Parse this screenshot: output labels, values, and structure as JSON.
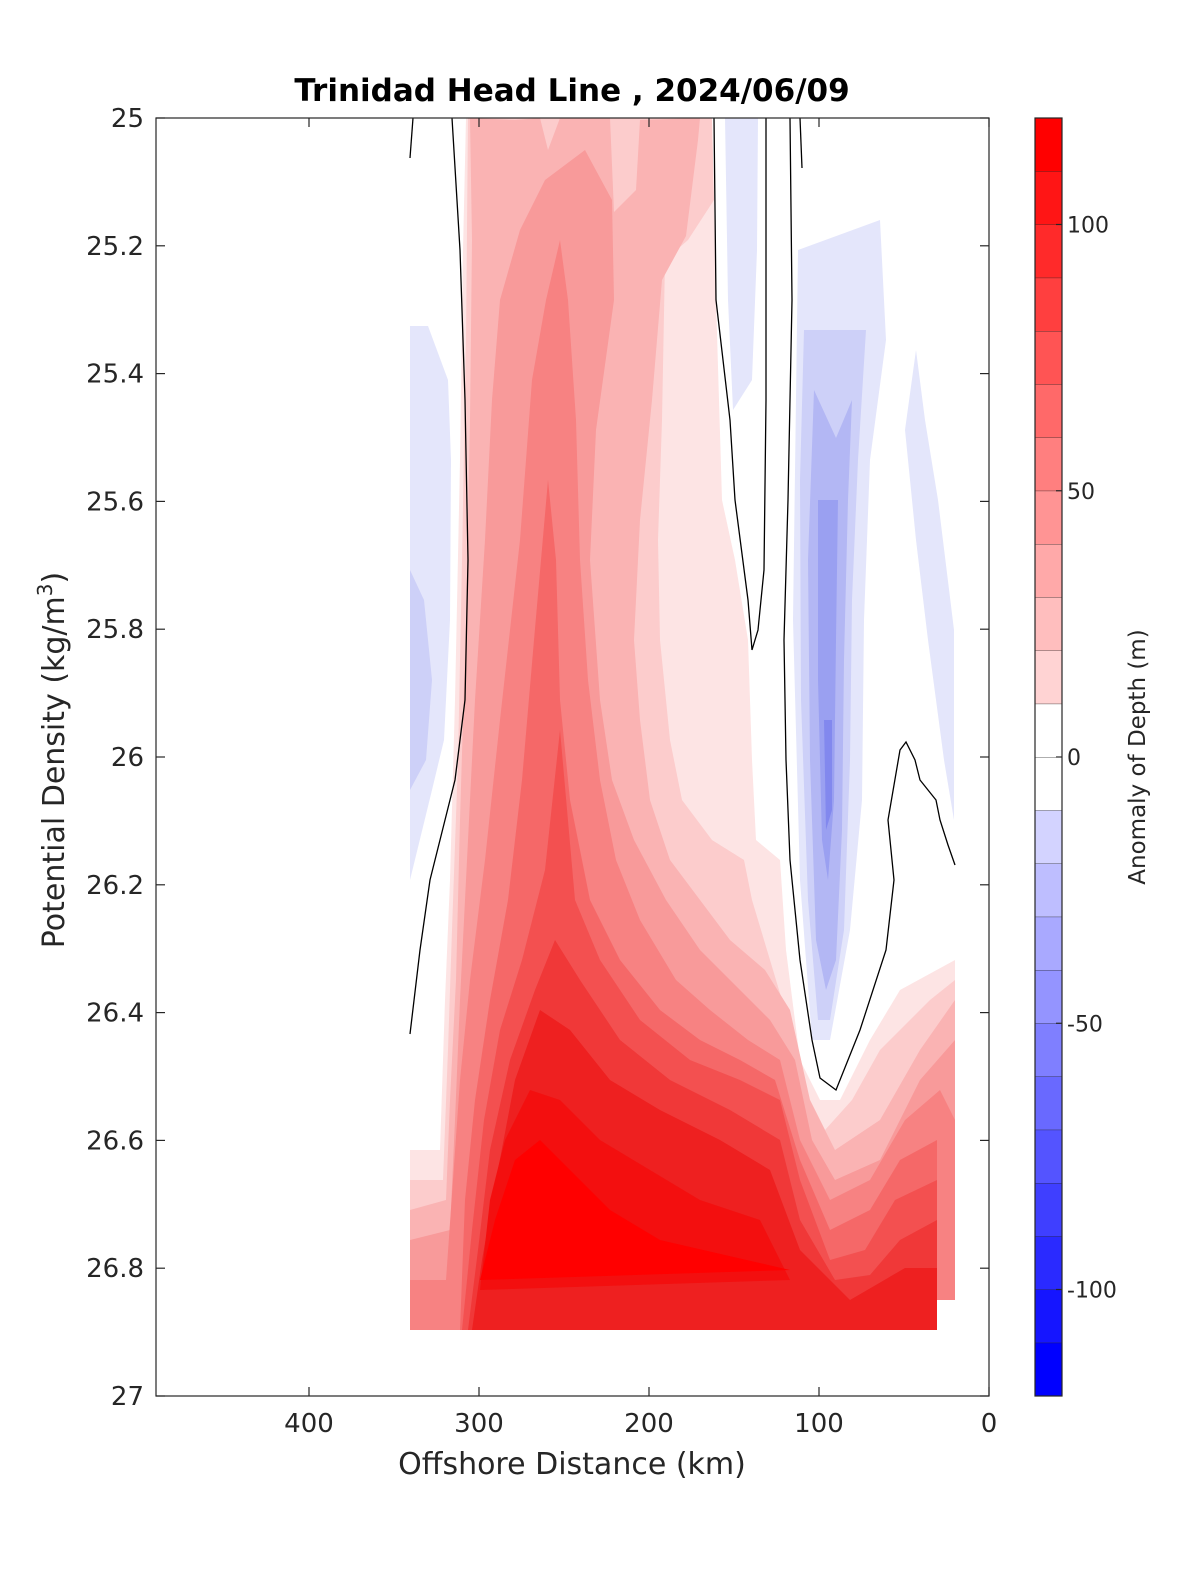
{
  "chart_data": {
    "type": "heatmap",
    "subtype": "filled-contour",
    "title": "Trinidad Head Line , 2024/06/09",
    "xlabel": "Offshore Distance (km)",
    "ylabel": "Potential Density (kg/m",
    "ylabel_sup": "3",
    "ylabel_close": ")",
    "xlim": [
      490,
      0
    ],
    "x_reversed": true,
    "x_ticks": [
      400,
      300,
      200,
      100,
      0
    ],
    "x_tick_labels": [
      "400",
      "300",
      "200",
      "100",
      "0"
    ],
    "ylim": [
      25,
      27
    ],
    "y_reversed": true,
    "y_ticks": [
      25,
      25.2,
      25.4,
      25.6,
      25.8,
      26,
      26.2,
      26.4,
      26.6,
      26.8,
      27
    ],
    "y_tick_labels": [
      "25",
      "25.2",
      "25.4",
      "25.6",
      "25.8",
      "26",
      "26.2",
      "26.4",
      "26.6",
      "26.8",
      "27"
    ],
    "colorbar": {
      "label": "Anomaly of Depth (m)",
      "range": [
        -120,
        120
      ],
      "ticks": [
        100,
        50,
        0,
        -50,
        -100
      ],
      "tick_labels": [
        "100",
        "50",
        "0",
        "-50",
        "-100"
      ],
      "levels": [
        -120,
        -110,
        -100,
        -90,
        -80,
        -70,
        -60,
        -50,
        -40,
        -30,
        -20,
        -10,
        0,
        10,
        20,
        30,
        40,
        50,
        60,
        70,
        80,
        90,
        100,
        110,
        120
      ]
    },
    "colors": {
      "positive_max": "#ff0000",
      "negative_max": "#0000ff",
      "zero": "#ffffff",
      "contour_line": "#000000",
      "axis": "#262626"
    },
    "zero_contour_present": true,
    "data_extent_km": [
      340,
      20
    ],
    "features": [
      {
        "value_m": 115,
        "x_km": 265,
        "density": 26.75
      },
      {
        "value_m": 60,
        "x_km": 255,
        "density": 26.0
      },
      {
        "value_m": 40,
        "x_km": 255,
        "density": 25.6
      },
      {
        "value_m": 25,
        "x_km": 230,
        "density": 25.1
      },
      {
        "value_m": -45,
        "x_km": 90,
        "density": 26.0
      },
      {
        "value_m": -15,
        "x_km": 335,
        "density": 25.9
      },
      {
        "value_m": 70,
        "x_km": 50,
        "density": 26.75
      }
    ]
  }
}
